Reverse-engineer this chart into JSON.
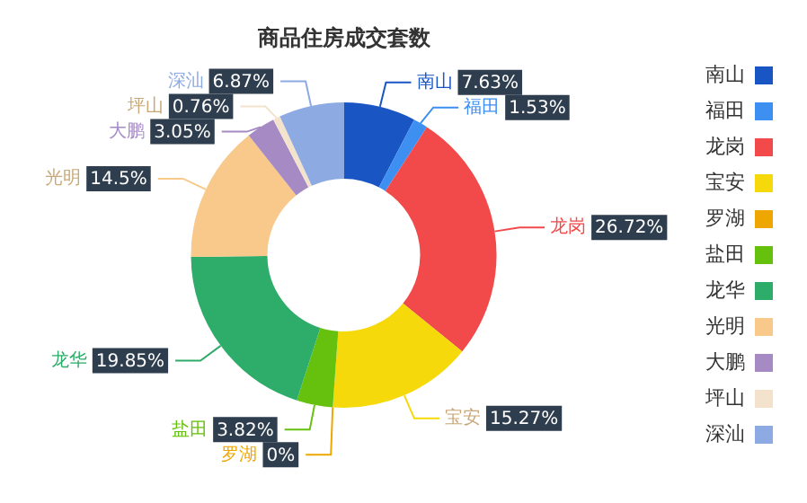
{
  "chart_data": {
    "type": "donut",
    "title": "商品住房成交套数",
    "categories": [
      "南山",
      "福田",
      "龙岗",
      "宝安",
      "罗湖",
      "盐田",
      "龙华",
      "光明",
      "大鹏",
      "坪山",
      "深汕"
    ],
    "values": [
      7.63,
      1.53,
      26.72,
      15.27,
      0,
      3.82,
      19.85,
      14.5,
      3.05,
      0.76,
      6.87
    ],
    "value_labels": [
      "7.63%",
      "1.53%",
      "26.72%",
      "15.27%",
      "0%",
      "3.82%",
      "19.85%",
      "14.5%",
      "3.05%",
      "0.76%",
      "6.87%"
    ],
    "colors": [
      "#1a55c4",
      "#3d8ff2",
      "#f24a4a",
      "#f5d90a",
      "#eea600",
      "#66c10e",
      "#2eac6a",
      "#f8c98b",
      "#a58ac4",
      "#f3e3cd",
      "#8daae3"
    ],
    "legend": "right"
  }
}
